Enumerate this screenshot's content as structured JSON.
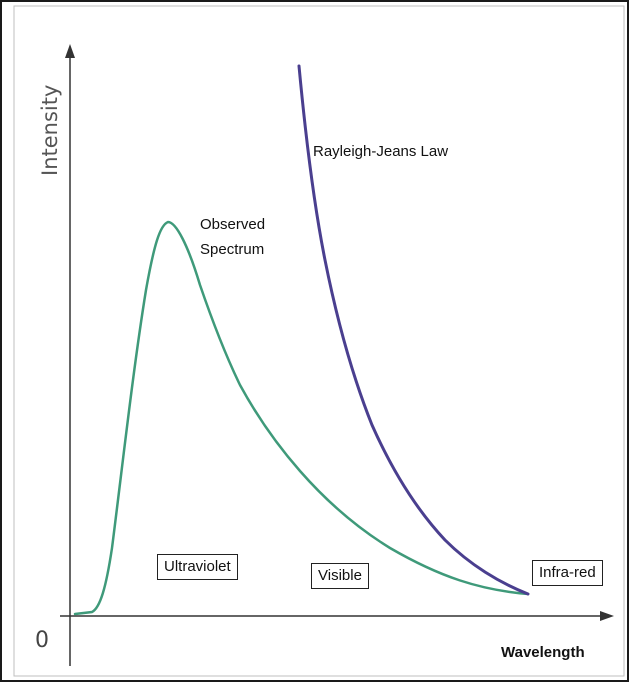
{
  "diagram": {
    "y_axis_label": "Intensity",
    "x_axis_label": "Wavelength",
    "origin_label": "0",
    "curves": [
      {
        "name": "observed-spectrum",
        "label_line1": "Observed",
        "label_line2": "Spectrum",
        "color": "#3f9a7a"
      },
      {
        "name": "rayleigh-jeans",
        "label": "Rayleigh-Jeans Law",
        "color": "#4a3f8f"
      }
    ],
    "regions": {
      "ultraviolet": "Ultraviolet",
      "visible": "Visible",
      "infrared": "Infra-red"
    },
    "colors": {
      "frame": "#1a1a1a",
      "axes": "#333333",
      "observed": "#3f9a7a",
      "rayleigh": "#4a3f8f"
    }
  }
}
